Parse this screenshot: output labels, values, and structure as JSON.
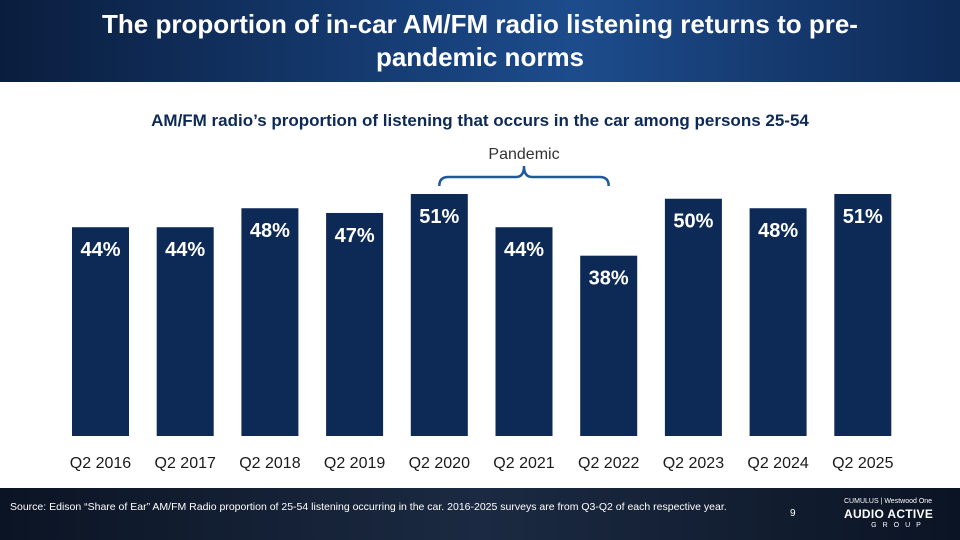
{
  "header": {
    "title": "The proportion of in-car AM/FM radio listening returns to pre-pandemic norms"
  },
  "chart_data": {
    "type": "bar",
    "title": "AM/FM radio’s proportion of listening that occurs in the car among persons 25-54",
    "categories": [
      "Q2 2016",
      "Q2 2017",
      "Q2 2018",
      "Q2 2019",
      "Q2 2020",
      "Q2 2021",
      "Q2 2022",
      "Q2 2023",
      "Q2 2024",
      "Q2 2025"
    ],
    "values": [
      44,
      44,
      48,
      47,
      51,
      44,
      38,
      50,
      48,
      51
    ],
    "data_labels": [
      "44%",
      "44%",
      "48%",
      "47%",
      "51%",
      "44%",
      "38%",
      "50%",
      "48%",
      "51%"
    ],
    "unit": "%",
    "ylim": [
      0,
      51
    ],
    "grid": false,
    "bar_color": "#0d2a57",
    "annotation": {
      "text": "Pandemic",
      "span": [
        "Q2 2020",
        "Q2 2022"
      ]
    }
  },
  "footer": {
    "source": "Source: Edison “Share of Ear” AM/FM Radio proportion of 25-54 listening occurring in the car. 2016-2025 surveys are from Q3-Q2 of each respective year.",
    "page_number": "9",
    "logo_top": "CUMULUS | Westwood One",
    "logo_main": "AUDIO ACTIVE",
    "logo_sub": "GROUP"
  }
}
